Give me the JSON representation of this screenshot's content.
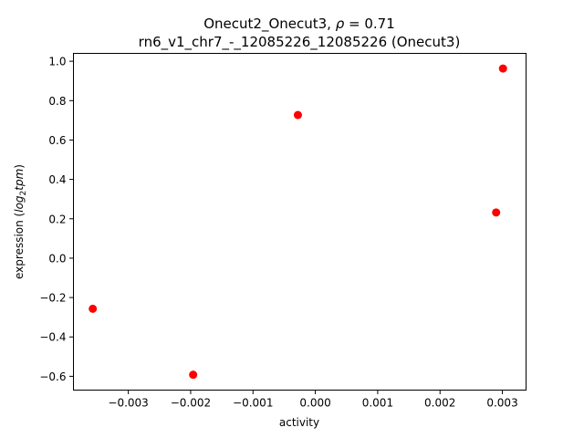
{
  "chart_data": {
    "type": "scatter",
    "title_line1_prefix": "Onecut2_Onecut3, ",
    "title_rho_symbol": "ρ",
    "title_rho_value": " = 0.71",
    "title_line2": "rn6_v1_chr7_-_12085226_12085226 (Onecut3)",
    "xlabel": "activity",
    "ylabel_prefix": "expression (",
    "ylabel_log": "log",
    "ylabel_sub": "2",
    "ylabel_tpm": "tpm",
    "ylabel_suffix": ")",
    "xlim": [
      -0.00388,
      0.00338
    ],
    "ylim": [
      -0.67,
      1.04
    ],
    "x_ticks": [
      -0.003,
      -0.002,
      -0.001,
      0.0,
      0.001,
      0.002,
      0.003
    ],
    "x_tick_labels": [
      "−0.003",
      "−0.002",
      "−0.001",
      "0.000",
      "0.001",
      "0.002",
      "0.003"
    ],
    "y_ticks": [
      -0.6,
      -0.4,
      -0.2,
      0.0,
      0.2,
      0.4,
      0.6,
      0.8,
      1.0
    ],
    "y_tick_labels": [
      "−0.6",
      "−0.4",
      "−0.2",
      "0.0",
      "0.2",
      "0.4",
      "0.6",
      "0.8",
      "1.0"
    ],
    "marker_color": "#ff0000",
    "points": [
      {
        "x": -0.00357,
        "y": -0.257
      },
      {
        "x": -0.00196,
        "y": -0.592
      },
      {
        "x": -0.00028,
        "y": 0.727
      },
      {
        "x": 0.0029,
        "y": 0.232
      },
      {
        "x": 0.00301,
        "y": 0.963
      }
    ]
  }
}
